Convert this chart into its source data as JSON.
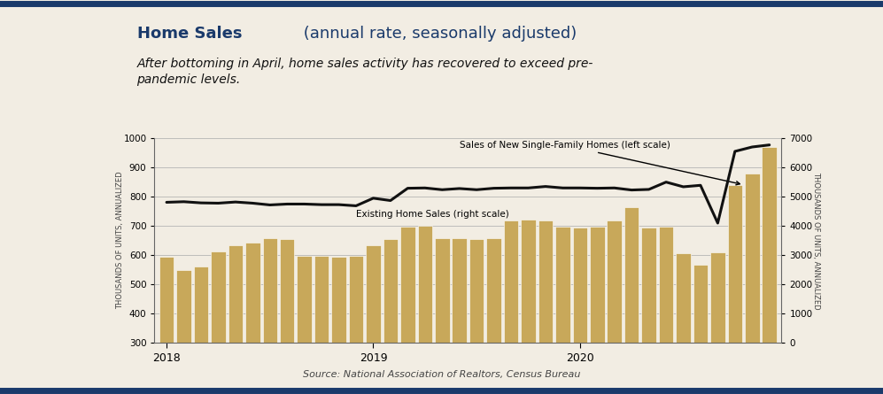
{
  "title_bold": "Home Sales",
  "title_normal": " (annual rate, seasonally adjusted)",
  "subtitle": "After bottoming in April, home sales activity has recovered to exceed pre-\npandemic levels.",
  "source": "Source: National Association of Realtors, Census Bureau",
  "background_color": "#f2ede3",
  "border_color": "#1a3a6b",
  "bar_color": "#c8a85a",
  "line_color": "#111111",
  "ylabel_left": "THOUSANDS OF UNITS, ANNUALIZED",
  "ylabel_right": "THOUSANDS OF UNITS, ANNUALIZED",
  "label_new": "Sales of New Single-Family Homes (left scale)",
  "label_existing": "Existing Home Sales (right scale)",
  "ylim_left": [
    300,
    1000
  ],
  "ylim_right": [
    0,
    7000
  ],
  "yticks_left": [
    300,
    400,
    500,
    600,
    700,
    800,
    900,
    1000
  ],
  "yticks_right": [
    0,
    1000,
    2000,
    3000,
    4000,
    5000,
    6000,
    7000
  ],
  "new_home_sales": [
    595,
    550,
    562,
    612,
    632,
    642,
    658,
    655,
    598,
    598,
    594,
    598,
    634,
    654,
    698,
    700,
    658,
    658,
    654,
    656,
    718,
    722,
    718,
    698,
    694,
    698,
    718,
    762,
    694,
    698,
    607,
    568,
    608,
    838,
    878,
    968
  ],
  "existing_home_sales": [
    4800,
    4820,
    4780,
    4770,
    4810,
    4770,
    4710,
    4740,
    4740,
    4720,
    4720,
    4680,
    4940,
    4860,
    5280,
    5290,
    5230,
    5270,
    5230,
    5280,
    5290,
    5290,
    5340,
    5290,
    5290,
    5280,
    5290,
    5220,
    5240,
    5490,
    5330,
    5380,
    4090,
    6540,
    6690,
    6760
  ],
  "xtick_positions": [
    0,
    12,
    24
  ],
  "xtick_labels": [
    "2018",
    "2019",
    "2020"
  ],
  "n_bars": 36,
  "title_color_bold": "#1a3a6b",
  "title_color_normal": "#1a3a6b",
  "subtitle_color": "#111111",
  "title_fontsize": 13,
  "subtitle_fontsize": 10
}
